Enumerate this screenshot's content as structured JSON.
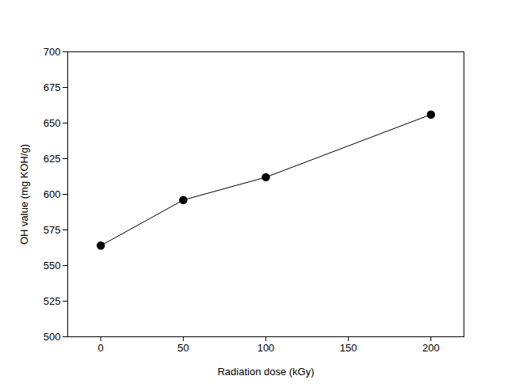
{
  "chart_data": {
    "type": "line",
    "x_label": "Radiation dose (kGy)",
    "y_label": "OH value (mg KOH/g)",
    "x": [
      0,
      50,
      100,
      200
    ],
    "values": [
      564,
      596,
      612,
      656
    ],
    "xlim": [
      -20,
      220
    ],
    "xticks": [
      0,
      50,
      100,
      150,
      200
    ],
    "ylim": [
      500,
      700
    ],
    "yticks": [
      500,
      525,
      550,
      575,
      600,
      625,
      650,
      675,
      700
    ],
    "color": "#000000",
    "marker": "circle",
    "line_style": "solid"
  }
}
